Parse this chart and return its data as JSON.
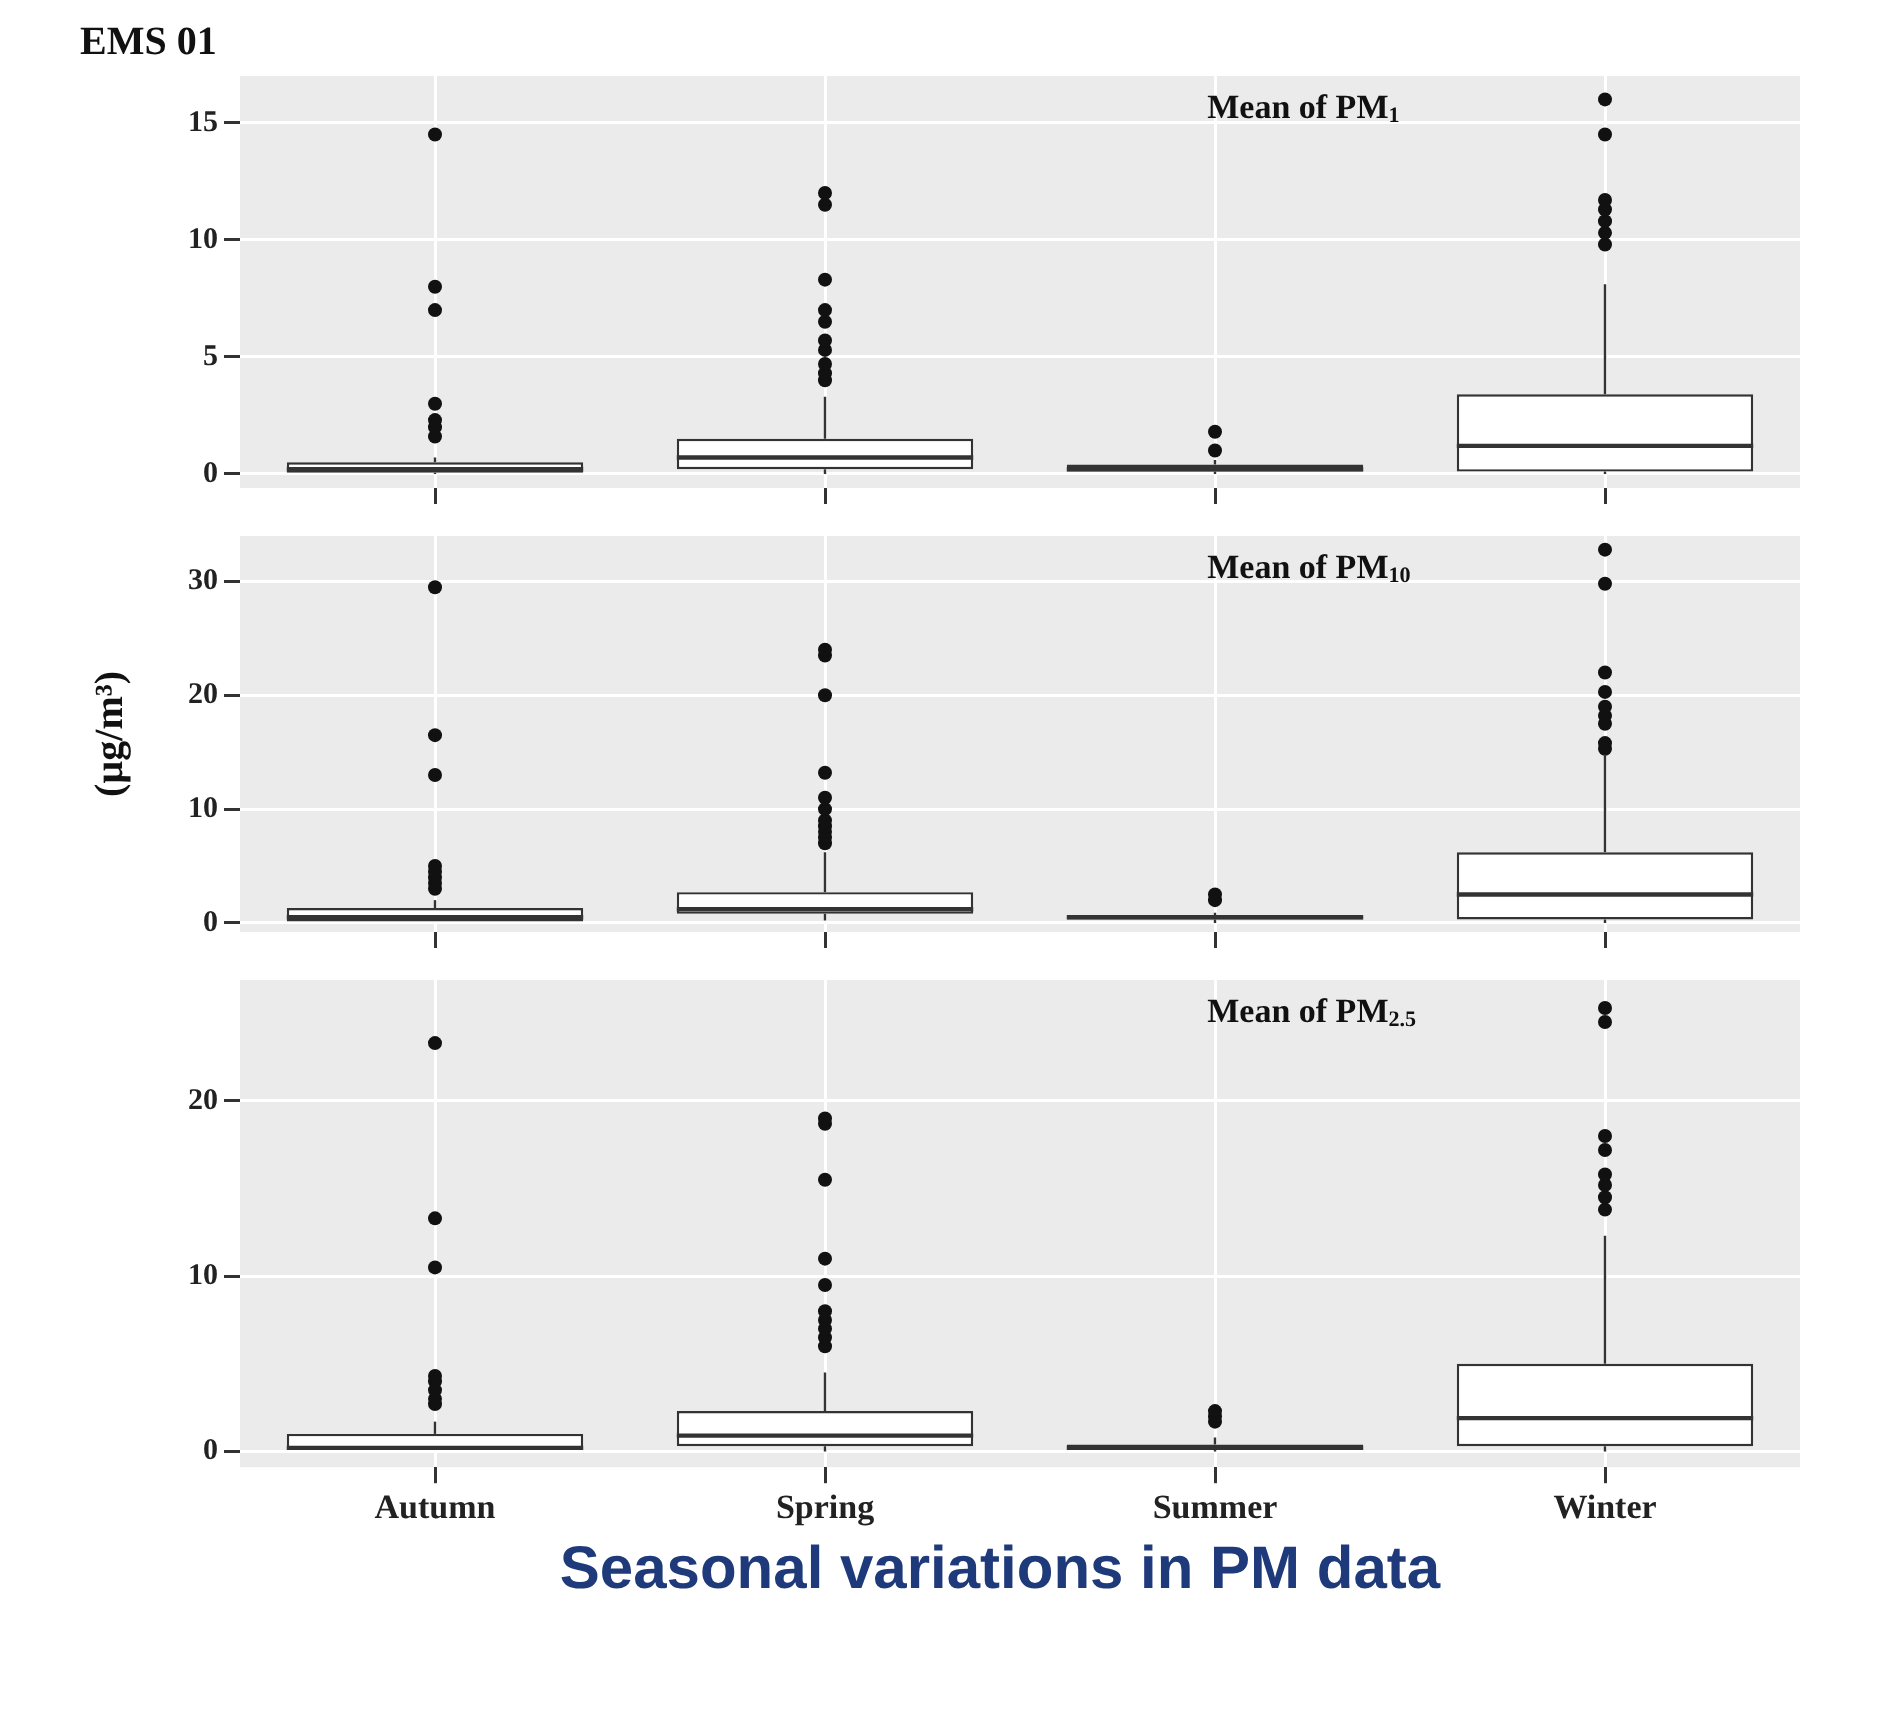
{
  "chart_data": [
    {
      "type": "box",
      "title": "EMS 01",
      "categories": [
        null,
        null,
        null,
        null
      ],
      "color": "#333333",
      "ylim": [
        -0.6,
        17
      ],
      "yticks": [
        0,
        5,
        10,
        15
      ],
      "grid": true,
      "tick_labels": "y",
      "annotations": [
        "Mean of PM$_{1}$"
      ],
      "boxes": [
        {
          "low": 0,
          "q1": 0.05,
          "median": 0.2,
          "q3": 0.5,
          "high": 0.7,
          "outliers": [
            1.6,
            2,
            2.3,
            3,
            7,
            8,
            14.5
          ]
        },
        {
          "low": 0,
          "q1": 0.2,
          "median": 0.7,
          "q3": 1.5,
          "high": 3.3,
          "outliers": [
            4,
            4.3,
            4.7,
            5.3,
            5.7,
            6.5,
            7,
            8.3,
            11.5,
            12
          ]
        },
        {
          "low": 0,
          "q1": 0.1,
          "median": 0.2,
          "q3": 0.4,
          "high": 0.6,
          "outliers": [
            1,
            1.8
          ]
        },
        {
          "low": 0,
          "q1": 0.1,
          "median": 1.2,
          "q3": 3.4,
          "high": 8.1,
          "outliers": [
            9.8,
            10.3,
            10.8,
            11.3,
            11.7,
            14.5,
            16
          ]
        }
      ]
    },
    {
      "type": "box",
      "ylabel": "(µg/m³)",
      "categories": [
        null,
        null,
        null,
        null
      ],
      "color": "#333333",
      "ylim": [
        -0.8,
        34
      ],
      "yticks": [
        0,
        10,
        20,
        30
      ],
      "grid": true,
      "tick_labels": "y",
      "annotations": [
        "Mean of PM$_{10}$"
      ],
      "boxes": [
        {
          "low": 0,
          "q1": 0,
          "median": 0.5,
          "q3": 1.3,
          "high": 2,
          "outliers": [
            3,
            3.5,
            4,
            4.5,
            5,
            13,
            16.5,
            29.5
          ]
        },
        {
          "low": 0.2,
          "q1": 0.8,
          "median": 1.2,
          "q3": 2.7,
          "high": 6.2,
          "outliers": [
            7,
            7.5,
            8,
            8.5,
            9,
            10,
            11,
            13.2,
            20,
            23.5,
            24
          ]
        },
        {
          "low": 0,
          "q1": 0.3,
          "median": 0.5,
          "q3": 0.6,
          "high": 0.9,
          "outliers": [
            2,
            2.5
          ]
        },
        {
          "low": 0,
          "q1": 0.3,
          "median": 2.5,
          "q3": 6.2,
          "high": 14.8,
          "outliers": [
            15.3,
            15.8,
            17.5,
            18.2,
            19,
            20.3,
            22,
            29.8,
            32.8
          ]
        }
      ]
    },
    {
      "type": "box",
      "categories": [
        "Autumn",
        "Spring",
        "Summer",
        "Winter"
      ],
      "color": "#333333",
      "ylim": [
        -0.9,
        26.9
      ],
      "yticks": [
        0,
        10,
        20
      ],
      "grid": true,
      "annotations": [
        "Mean of PM$_{2.5}$",
        "Seasonal variations in PM data"
      ],
      "boxes": [
        {
          "low": 0,
          "q1": 0,
          "median": 0.2,
          "q3": 1,
          "high": 1.7,
          "outliers": [
            2.7,
            3,
            3.5,
            4,
            4.3,
            10.5,
            13.3,
            23.3
          ]
        },
        {
          "low": 0,
          "q1": 0.3,
          "median": 0.9,
          "q3": 2.3,
          "high": 4.5,
          "outliers": [
            6,
            6.5,
            7,
            7.5,
            8,
            9.5,
            11,
            15.5,
            18.7,
            19
          ]
        },
        {
          "low": 0,
          "q1": 0.1,
          "median": 0.2,
          "q3": 0.4,
          "high": 0.8,
          "outliers": [
            1.7,
            2,
            2.3
          ]
        },
        {
          "low": 0,
          "q1": 0.3,
          "median": 1.9,
          "q3": 5,
          "high": 12.3,
          "outliers": [
            13.8,
            14.5,
            15.2,
            15.8,
            17.2,
            18,
            24.5,
            25.3
          ]
        }
      ]
    }
  ]
}
